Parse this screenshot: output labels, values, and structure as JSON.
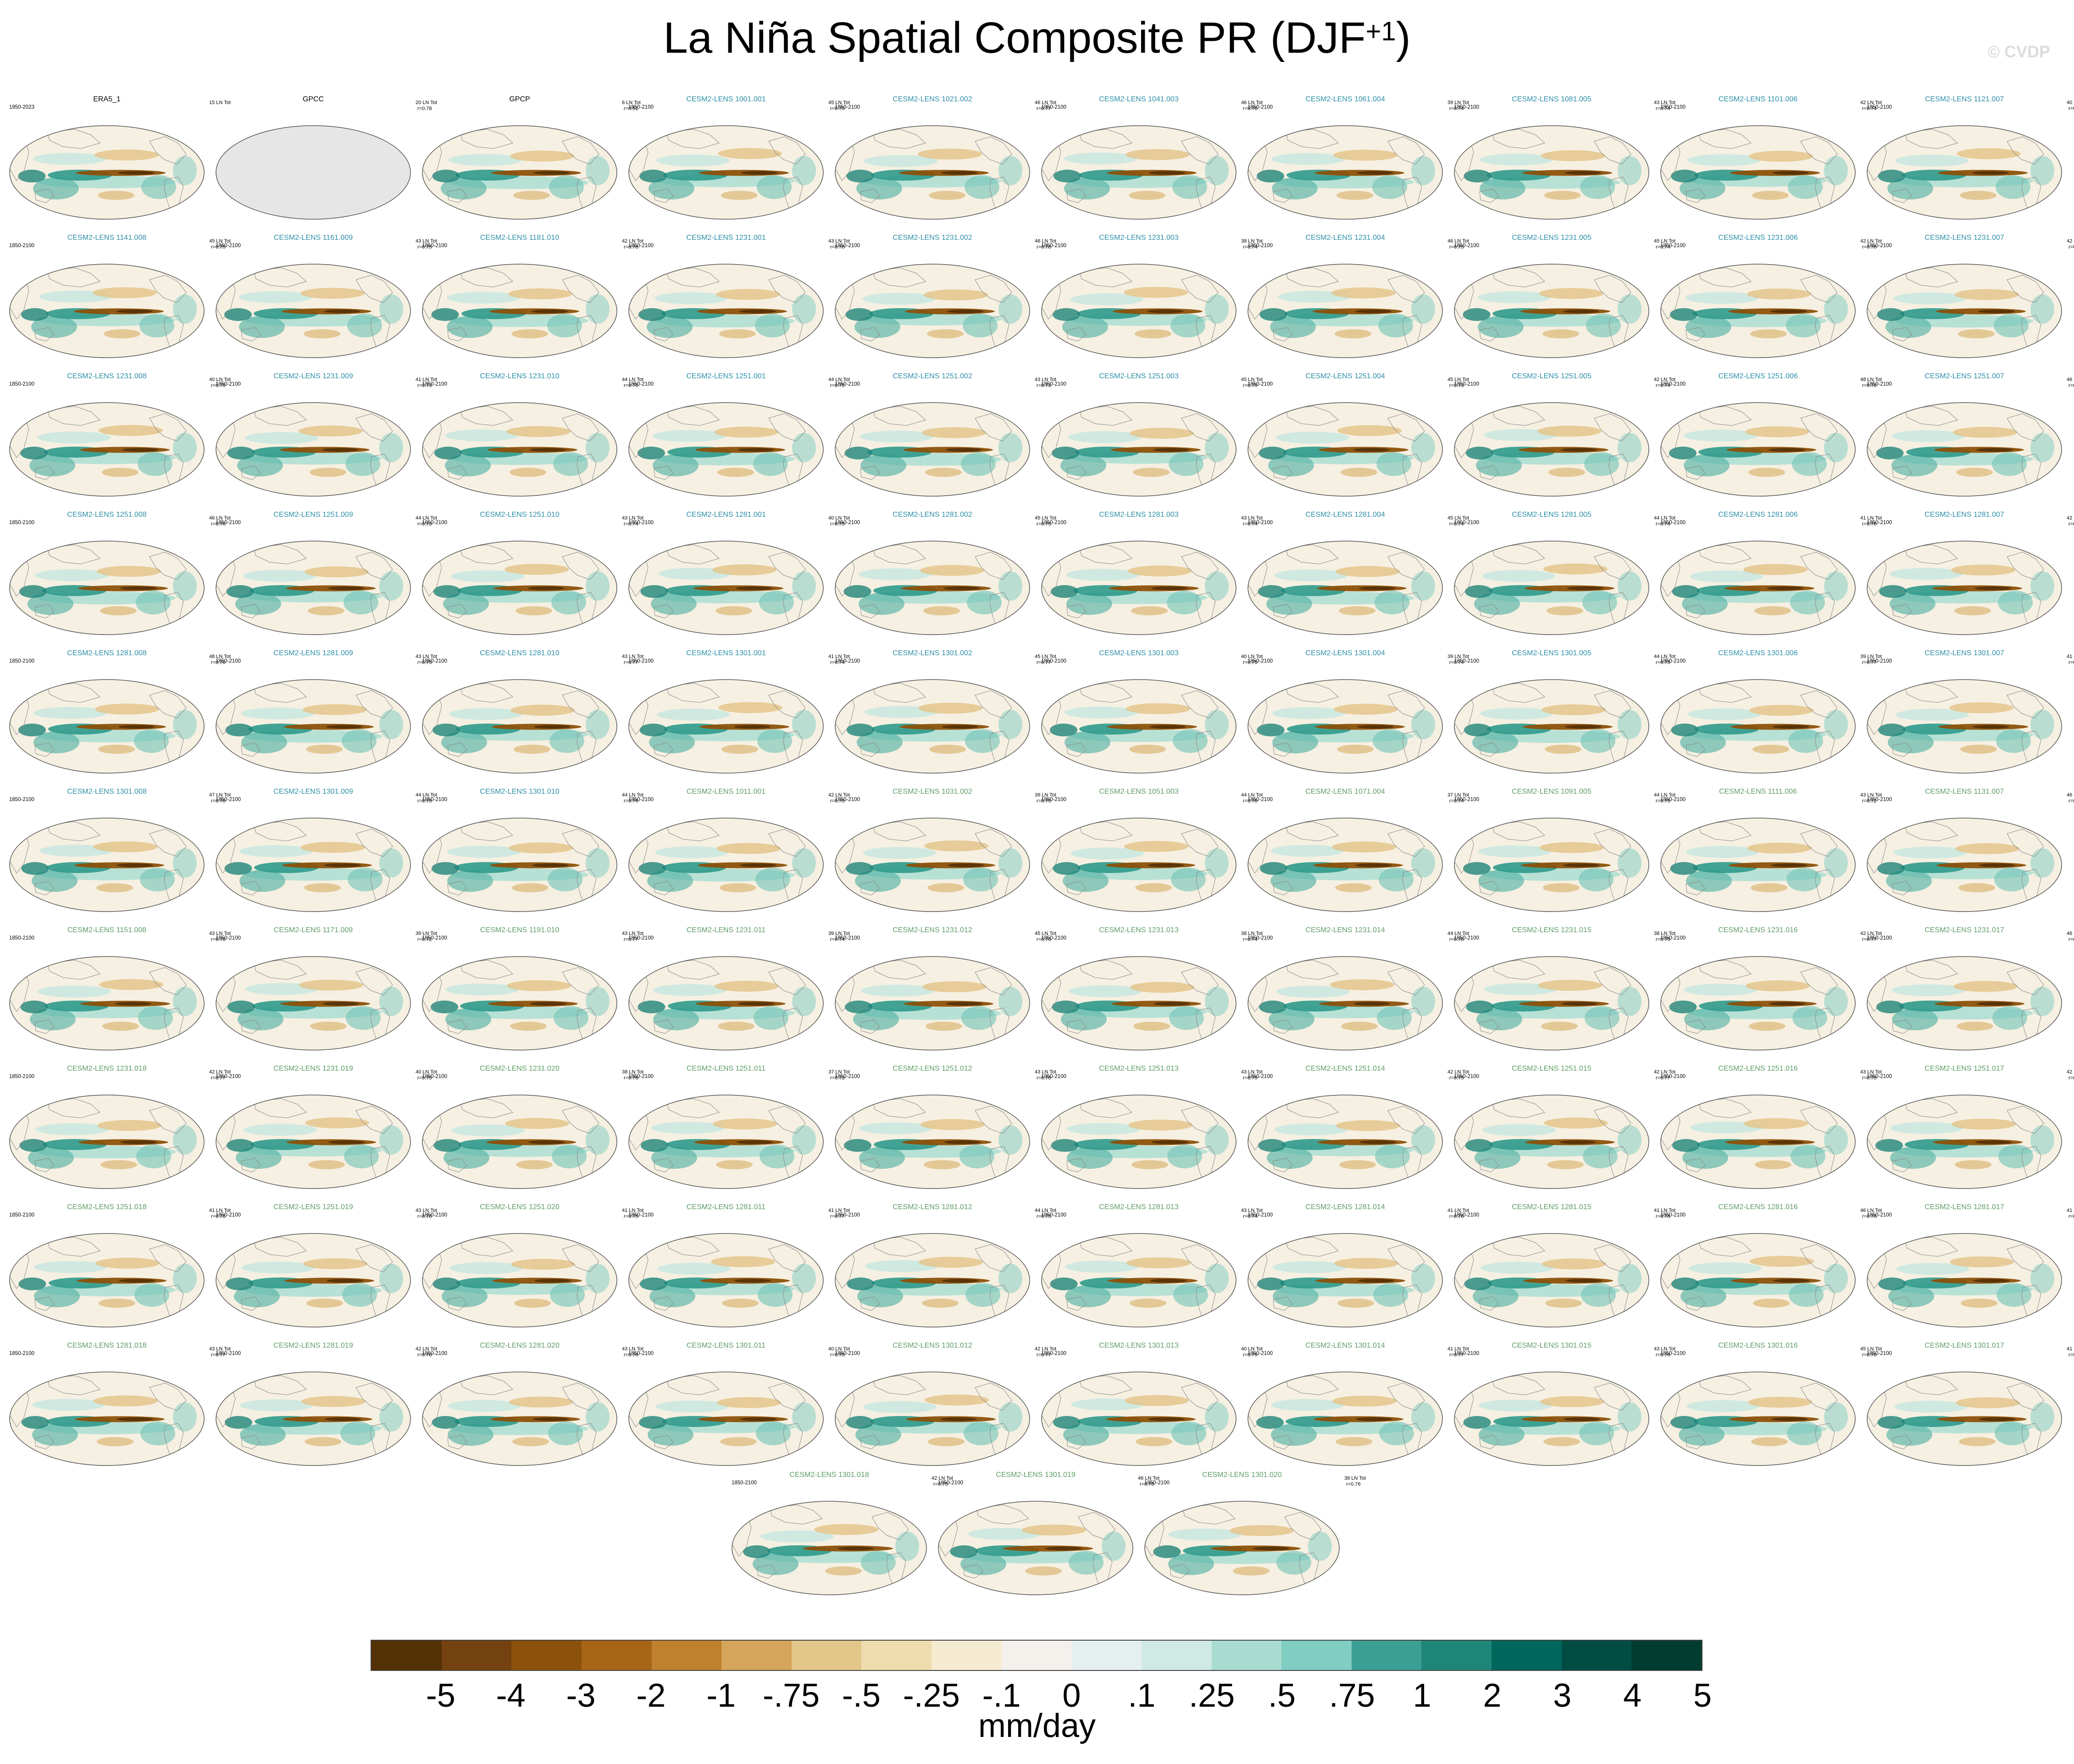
{
  "title_main": "La Niña Spatial Composite PR (DJF",
  "title_sup": "+1",
  "title_close": ")",
  "watermark": "© CVDP",
  "chart_data": {
    "type": "heatmap",
    "projection": "Robinson, Pacific-centered global maps",
    "variable": "PR",
    "season": "DJF+1",
    "units": "mm/day",
    "grid": false,
    "panels": [
      {
        "title": "ERA5_1",
        "period": "1950-2023",
        "count": "15 LN Tot",
        "r": ""
      },
      {
        "title": "GPCC",
        "period": "",
        "count": "20 LN Tot",
        "r": "r=0.78",
        "nodata": true
      },
      {
        "title": "GPCP",
        "period": "",
        "count": "6 LN Tot",
        "r": "r=0.91"
      },
      {
        "title": "CESM2-LENS 1001.001",
        "period": "1850-2100",
        "count": "45 LN Tot",
        "r": "r=0.75"
      },
      {
        "title": "CESM2-LENS 1021.002",
        "period": "1850-2100",
        "count": "46 LN Tot",
        "r": "r=0.77"
      },
      {
        "title": "CESM2-LENS 1041.003",
        "period": "1850-2100",
        "count": "46 LN Tot",
        "r": "r=0.76"
      },
      {
        "title": "CESM2-LENS 1061.004",
        "period": "1850-2100",
        "count": "39 LN Tot",
        "r": "r=0.74"
      },
      {
        "title": "CESM2-LENS 1081.005",
        "period": "1850-2100",
        "count": "43 LN Tot",
        "r": "r=0.74"
      },
      {
        "title": "CESM2-LENS 1101.006",
        "period": "1850-2100",
        "count": "42 LN Tot",
        "r": "r=0.74"
      },
      {
        "title": "CESM2-LENS 1121.007",
        "period": "1850-2100",
        "count": "40 LN Tot",
        "r": "r=0.74"
      },
      {
        "title": "CESM2-LENS 1141.008",
        "period": "1850-2100",
        "count": "45 LN Tot",
        "r": "r=0.75"
      },
      {
        "title": "CESM2-LENS 1161.009",
        "period": "1850-2100",
        "count": "43 LN Tot",
        "r": "r=0.75"
      },
      {
        "title": "CESM2-LENS 1181.010",
        "period": "1850-2100",
        "count": "42 LN Tot",
        "r": "r=0.76"
      },
      {
        "title": "CESM2-LENS 1231.001",
        "period": "1850-2100",
        "count": "43 LN Tot",
        "r": "r=0.76"
      },
      {
        "title": "CESM2-LENS 1231.002",
        "period": "1850-2100",
        "count": "46 LN Tot",
        "r": "r=0.76"
      },
      {
        "title": "CESM2-LENS 1231.003",
        "period": "1850-2100",
        "count": "38 LN Tot",
        "r": "r=0.74"
      },
      {
        "title": "CESM2-LENS 1231.004",
        "period": "1850-2100",
        "count": "46 LN Tot",
        "r": "r=0.75"
      },
      {
        "title": "CESM2-LENS 1231.005",
        "period": "1850-2100",
        "count": "45 LN Tot",
        "r": "r=0.74"
      },
      {
        "title": "CESM2-LENS 1231.006",
        "period": "1850-2100",
        "count": "42 LN Tot",
        "r": "r=0.76"
      },
      {
        "title": "CESM2-LENS 1231.007",
        "period": "1850-2100",
        "count": "42 LN Tot",
        "r": "r=0.74"
      },
      {
        "title": "CESM2-LENS 1231.008",
        "period": "1850-2100",
        "count": "40 LN Tot",
        "r": "r=0.75"
      },
      {
        "title": "CESM2-LENS 1231.009",
        "period": "1850-2100",
        "count": "41 LN Tot",
        "r": "r=0.73"
      },
      {
        "title": "CESM2-LENS 1231.010",
        "period": "1850-2100",
        "count": "44 LN Tot",
        "r": "r=0.75"
      },
      {
        "title": "CESM2-LENS 1251.001",
        "period": "1850-2100",
        "count": "44 LN Tot",
        "r": "r=0.75"
      },
      {
        "title": "CESM2-LENS 1251.002",
        "period": "1850-2100",
        "count": "43 LN Tot",
        "r": "r=0.73"
      },
      {
        "title": "CESM2-LENS 1251.003",
        "period": "1850-2100",
        "count": "45 LN Tot",
        "r": "r=0.75"
      },
      {
        "title": "CESM2-LENS 1251.004",
        "period": "1850-2100",
        "count": "45 LN Tot",
        "r": "r=0.73"
      },
      {
        "title": "CESM2-LENS 1251.005",
        "period": "1850-2100",
        "count": "42 LN Tot",
        "r": "r=0.74"
      },
      {
        "title": "CESM2-LENS 1251.006",
        "period": "1850-2100",
        "count": "48 LN Tot",
        "r": "r=0.76"
      },
      {
        "title": "CESM2-LENS 1251.007",
        "period": "1850-2100",
        "count": "46 LN Tot",
        "r": "r=0.76"
      },
      {
        "title": "CESM2-LENS 1251.008",
        "period": "1850-2100",
        "count": "46 LN Tot",
        "r": "r=0.76"
      },
      {
        "title": "CESM2-LENS 1251.009",
        "period": "1850-2100",
        "count": "44 LN Tot",
        "r": "r=0.73"
      },
      {
        "title": "CESM2-LENS 1251.010",
        "period": "1850-2100",
        "count": "43 LN Tot",
        "r": "r=0.74"
      },
      {
        "title": "CESM2-LENS 1281.001",
        "period": "1850-2100",
        "count": "40 LN Tot",
        "r": "r=0.75"
      },
      {
        "title": "CESM2-LENS 1281.002",
        "period": "1850-2100",
        "count": "45 LN Tot",
        "r": "r=0.75"
      },
      {
        "title": "CESM2-LENS 1281.003",
        "period": "1850-2100",
        "count": "43 LN Tot",
        "r": "r=0.74"
      },
      {
        "title": "CESM2-LENS 1281.004",
        "period": "1850-2100",
        "count": "45 LN Tot",
        "r": "r=0.74"
      },
      {
        "title": "CESM2-LENS 1281.005",
        "period": "1850-2100",
        "count": "44 LN Tot",
        "r": "r=0.74"
      },
      {
        "title": "CESM2-LENS 1281.006",
        "period": "1850-2100",
        "count": "41 LN Tot",
        "r": "r=0.76"
      },
      {
        "title": "CESM2-LENS 1281.007",
        "period": "1850-2100",
        "count": "42 LN Tot",
        "r": "r=0.77"
      },
      {
        "title": "CESM2-LENS 1281.008",
        "period": "1850-2100",
        "count": "48 LN Tot",
        "r": "r=0.76"
      },
      {
        "title": "CESM2-LENS 1281.009",
        "period": "1850-2100",
        "count": "43 LN Tot",
        "r": "r=0.75"
      },
      {
        "title": "CESM2-LENS 1281.010",
        "period": "1850-2100",
        "count": "43 LN Tot",
        "r": "r=0.77"
      },
      {
        "title": "CESM2-LENS 1301.001",
        "period": "1850-2100",
        "count": "41 LN Tot",
        "r": "r=0.74"
      },
      {
        "title": "CESM2-LENS 1301.002",
        "period": "1850-2100",
        "count": "45 LN Tot",
        "r": "r=0.77"
      },
      {
        "title": "CESM2-LENS 1301.003",
        "period": "1850-2100",
        "count": "40 LN Tot",
        "r": "r=0.75"
      },
      {
        "title": "CESM2-LENS 1301.004",
        "period": "1850-2100",
        "count": "39 LN Tot",
        "r": "r=0.74"
      },
      {
        "title": "CESM2-LENS 1301.005",
        "period": "1850-2100",
        "count": "44 LN Tot",
        "r": "r=0.75"
      },
      {
        "title": "CESM2-LENS 1301.006",
        "period": "1850-2100",
        "count": "39 LN Tot",
        "r": "r=0.77"
      },
      {
        "title": "CESM2-LENS 1301.007",
        "period": "1850-2100",
        "count": "41 LN Tot",
        "r": "r=0.75"
      },
      {
        "title": "CESM2-LENS 1301.008",
        "period": "1850-2100",
        "count": "47 LN Tot",
        "r": "r=0.76"
      },
      {
        "title": "CESM2-LENS 1301.009",
        "period": "1850-2100",
        "count": "44 LN Tot",
        "r": "r=0.75"
      },
      {
        "title": "CESM2-LENS 1301.010",
        "period": "1850-2100",
        "count": "44 LN Tot",
        "r": "r=0.76"
      },
      {
        "title": "CESM2-LENS 1011.001",
        "period": "1850-2100",
        "count": "42 LN Tot",
        "r": "r=0.75"
      },
      {
        "title": "CESM2-LENS 1031.002",
        "period": "1850-2100",
        "count": "39 LN Tot",
        "r": "r=0.75"
      },
      {
        "title": "CESM2-LENS 1051.003",
        "period": "1850-2100",
        "count": "44 LN Tot",
        "r": "r=0.76"
      },
      {
        "title": "CESM2-LENS 1071.004",
        "period": "1850-2100",
        "count": "37 LN Tot",
        "r": "r=0.74"
      },
      {
        "title": "CESM2-LENS 1091.005",
        "period": "1850-2100",
        "count": "44 LN Tot",
        "r": "r=0.75"
      },
      {
        "title": "CESM2-LENS 1111.006",
        "period": "1850-2100",
        "count": "43 LN Tot",
        "r": "r=0.72"
      },
      {
        "title": "CESM2-LENS 1131.007",
        "period": "1850-2100",
        "count": "46 LN Tot",
        "r": "r=0.75"
      },
      {
        "title": "CESM2-LENS 1151.008",
        "period": "1850-2100",
        "count": "43 LN Tot",
        "r": "r=0.76"
      },
      {
        "title": "CESM2-LENS 1171.009",
        "period": "1850-2100",
        "count": "39 LN Tot",
        "r": "r=0.72"
      },
      {
        "title": "CESM2-LENS 1191.010",
        "period": "1850-2100",
        "count": "43 LN Tot",
        "r": "r=0.77"
      },
      {
        "title": "CESM2-LENS 1231.011",
        "period": "1850-2100",
        "count": "39 LN Tot",
        "r": "r=0.74"
      },
      {
        "title": "CESM2-LENS 1231.012",
        "period": "1850-2100",
        "count": "45 LN Tot",
        "r": "r=0.76"
      },
      {
        "title": "CESM2-LENS 1231.013",
        "period": "1850-2100",
        "count": "38 LN Tot",
        "r": "r=0.74"
      },
      {
        "title": "CESM2-LENS 1231.014",
        "period": "1850-2100",
        "count": "44 LN Tot",
        "r": "r=0.76"
      },
      {
        "title": "CESM2-LENS 1231.015",
        "period": "1850-2100",
        "count": "38 LN Tot",
        "r": "r=0.75"
      },
      {
        "title": "CESM2-LENS 1231.016",
        "period": "1850-2100",
        "count": "42 LN Tot",
        "r": "r=0.77"
      },
      {
        "title": "CESM2-LENS 1231.017",
        "period": "1850-2100",
        "count": "46 LN Tot",
        "r": "r=0.74"
      },
      {
        "title": "CESM2-LENS 1231.018",
        "period": "1850-2100",
        "count": "42 LN Tot",
        "r": "r=0.77"
      },
      {
        "title": "CESM2-LENS 1231.019",
        "period": "1850-2100",
        "count": "40 LN Tot",
        "r": "r=0.75"
      },
      {
        "title": "CESM2-LENS 1231.020",
        "period": "1850-2100",
        "count": "38 LN Tot",
        "r": "r=0.76"
      },
      {
        "title": "CESM2-LENS 1251.011",
        "period": "1850-2100",
        "count": "37 LN Tot",
        "r": "r=0.73"
      },
      {
        "title": "CESM2-LENS 1251.012",
        "period": "1850-2100",
        "count": "43 LN Tot",
        "r": "r=0.76"
      },
      {
        "title": "CESM2-LENS 1251.013",
        "period": "1850-2100",
        "count": "43 LN Tot",
        "r": "r=0.75"
      },
      {
        "title": "CESM2-LENS 1251.014",
        "period": "1850-2100",
        "count": "42 LN Tot",
        "r": "r=0.75"
      },
      {
        "title": "CESM2-LENS 1251.015",
        "period": "1850-2100",
        "count": "42 LN Tot",
        "r": "r=0.77"
      },
      {
        "title": "CESM2-LENS 1251.016",
        "period": "1850-2100",
        "count": "43 LN Tot",
        "r": "r=0.75"
      },
      {
        "title": "CESM2-LENS 1251.017",
        "period": "1850-2100",
        "count": "42 LN Tot",
        "r": "r=0.73"
      },
      {
        "title": "CESM2-LENS 1251.018",
        "period": "1850-2100",
        "count": "41 LN Tot",
        "r": "r=0.76"
      },
      {
        "title": "CESM2-LENS 1251.019",
        "period": "1850-2100",
        "count": "43 LN Tot",
        "r": "r=0.76"
      },
      {
        "title": "CESM2-LENS 1251.020",
        "period": "1850-2100",
        "count": "41 LN Tot",
        "r": "r=0.75"
      },
      {
        "title": "CESM2-LENS 1281.011",
        "period": "1850-2100",
        "count": "41 LN Tot",
        "r": "r=0.77"
      },
      {
        "title": "CESM2-LENS 1281.012",
        "period": "1850-2100",
        "count": "44 LN Tot",
        "r": "r=0.75"
      },
      {
        "title": "CESM2-LENS 1281.013",
        "period": "1850-2100",
        "count": "43 LN Tot",
        "r": "r=0.74"
      },
      {
        "title": "CESM2-LENS 1281.014",
        "period": "1850-2100",
        "count": "41 LN Tot",
        "r": "r=0.76"
      },
      {
        "title": "CESM2-LENS 1281.015",
        "period": "1850-2100",
        "count": "41 LN Tot",
        "r": "r=0.78"
      },
      {
        "title": "CESM2-LENS 1281.016",
        "period": "1850-2100",
        "count": "46 LN Tot",
        "r": "r=0.76"
      },
      {
        "title": "CESM2-LENS 1281.017",
        "period": "1850-2100",
        "count": "41 LN Tot",
        "r": "r=0.76"
      },
      {
        "title": "CESM2-LENS 1281.018",
        "period": "1850-2100",
        "count": "43 LN Tot",
        "r": "r=0.77"
      },
      {
        "title": "CESM2-LENS 1281.019",
        "period": "1850-2100",
        "count": "42 LN Tot",
        "r": "r=0.76"
      },
      {
        "title": "CESM2-LENS 1281.020",
        "period": "1850-2100",
        "count": "43 LN Tot",
        "r": "r=0.76"
      },
      {
        "title": "CESM2-LENS 1301.011",
        "period": "1850-2100",
        "count": "40 LN Tot",
        "r": "r=0.75"
      },
      {
        "title": "CESM2-LENS 1301.012",
        "period": "1850-2100",
        "count": "42 LN Tot",
        "r": "r=0.77"
      },
      {
        "title": "CESM2-LENS 1301.013",
        "period": "1850-2100",
        "count": "40 LN Tot",
        "r": "r=0.75"
      },
      {
        "title": "CESM2-LENS 1301.014",
        "period": "1850-2100",
        "count": "41 LN Tot",
        "r": "r=0.77"
      },
      {
        "title": "CESM2-LENS 1301.015",
        "period": "1850-2100",
        "count": "43 LN Tot",
        "r": "r=0.76"
      },
      {
        "title": "CESM2-LENS 1301.016",
        "period": "1850-2100",
        "count": "45 LN Tot",
        "r": "r=0.76"
      },
      {
        "title": "CESM2-LENS 1301.017",
        "period": "1850-2100",
        "count": "41 LN Tot",
        "r": "r=0.76"
      },
      {
        "title": "CESM2-LENS 1301.018",
        "period": "1850-2100",
        "count": "42 LN Tot",
        "r": "r=0.75"
      },
      {
        "title": "CESM2-LENS 1301.019",
        "period": "1850-2100",
        "count": "46 LN Tot",
        "r": "r=0.76"
      },
      {
        "title": "CESM2-LENS 1301.020",
        "period": "1850-2100",
        "count": "38 LN Tot",
        "r": "r=0.76"
      }
    ],
    "colorbar": {
      "units_label": "mm/day",
      "tick_labels": [
        "-5",
        "-4",
        "-3",
        "-2",
        "-1",
        "-.75",
        "-.5",
        "-.25",
        "-.1",
        "0",
        ".1",
        ".25",
        ".5",
        ".75",
        "1",
        "2",
        "3",
        "4",
        "5"
      ],
      "colors": [
        "#543005",
        "#744110",
        "#8c510a",
        "#a86518",
        "#bf812d",
        "#d4a55a",
        "#e2c68a",
        "#efdcae",
        "#f5ebd0",
        "#f4f1ec",
        "#e4f0ef",
        "#cfeae4",
        "#a8dcd1",
        "#80cdc1",
        "#3b9f94",
        "#1f8579",
        "#01665e",
        "#014d43",
        "#003c30"
      ]
    }
  }
}
